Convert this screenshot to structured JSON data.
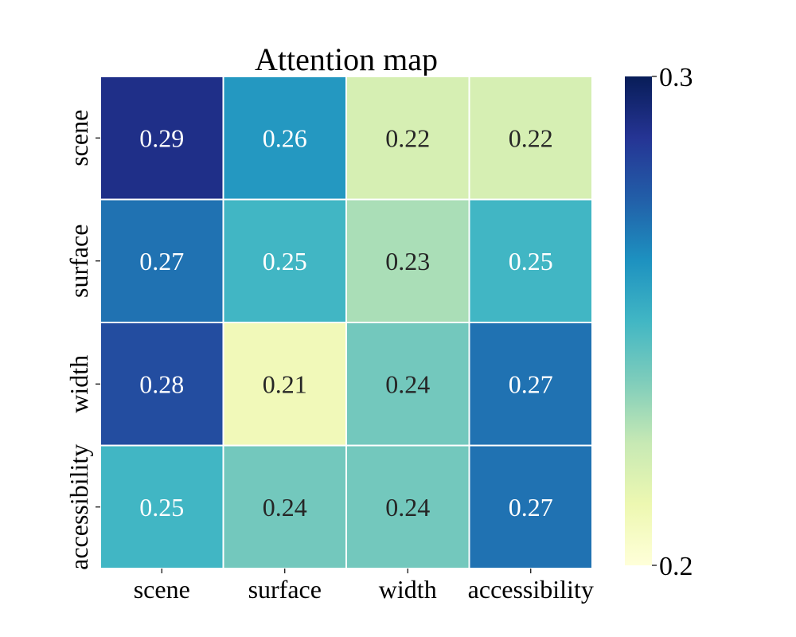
{
  "chart_data": {
    "type": "heatmap",
    "title": "Attention map",
    "xlabel": "",
    "ylabel": "",
    "x_categories": [
      "scene",
      "surface",
      "width",
      "accessibility"
    ],
    "y_categories": [
      "scene",
      "surface",
      "width",
      "accessibility"
    ],
    "values": [
      [
        0.29,
        0.26,
        0.22,
        0.22
      ],
      [
        0.27,
        0.25,
        0.23,
        0.25
      ],
      [
        0.28,
        0.21,
        0.24,
        0.27
      ],
      [
        0.25,
        0.24,
        0.24,
        0.27
      ]
    ],
    "colorbar": {
      "min": 0.2,
      "max": 0.3,
      "ticks": [
        "0.2",
        "0.3"
      ],
      "colormap": "YlGnBu"
    },
    "annotations": true
  },
  "colors": {
    "colormap_stops": [
      "#ffffd9",
      "#edf8b1",
      "#c7e9b4",
      "#7fcdbb",
      "#41b6c4",
      "#1d91c0",
      "#225ea8",
      "#253494",
      "#081d58"
    ],
    "cell_border": "#ffffff",
    "light_text": "#ffffff",
    "dark_text": "#262626"
  }
}
